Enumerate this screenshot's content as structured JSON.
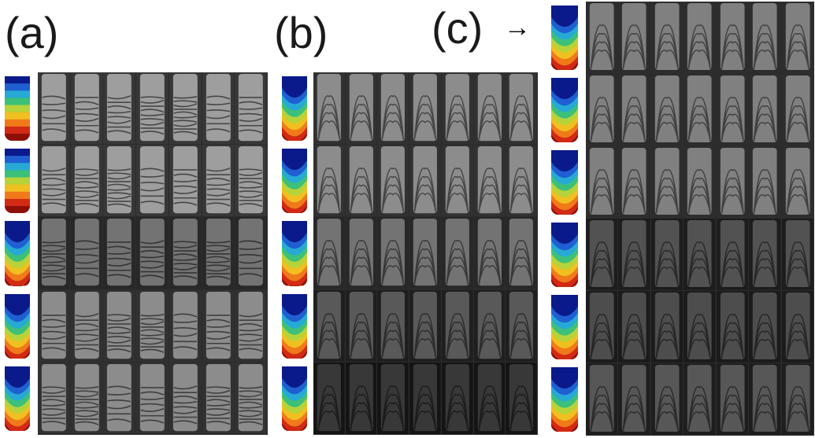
{
  "labels": {
    "a": "(a)",
    "b": "(b)",
    "c": "(c)",
    "arrow": "→"
  },
  "panels": [
    {
      "id": "a",
      "rows": 5,
      "cols": 7,
      "mode": "horizontal-fringes",
      "brightness": [
        0.62,
        0.62,
        0.45,
        0.55,
        0.55
      ]
    },
    {
      "id": "b",
      "rows": 5,
      "cols": 7,
      "mode": "tip-fringes",
      "brightness": [
        0.55,
        0.55,
        0.45,
        0.35,
        0.22
      ]
    },
    {
      "id": "c",
      "rows": 6,
      "cols": 7,
      "mode": "tip-fringes",
      "brightness": [
        0.5,
        0.5,
        0.5,
        0.32,
        0.3,
        0.34
      ]
    }
  ],
  "colors": {
    "sim_palette": [
      "#0a1a8a",
      "#1f5fd1",
      "#27a9d6",
      "#3cc07a",
      "#b6d33a",
      "#f0c020",
      "#f07a1a",
      "#d22a14",
      "#8e0f0a"
    ]
  }
}
